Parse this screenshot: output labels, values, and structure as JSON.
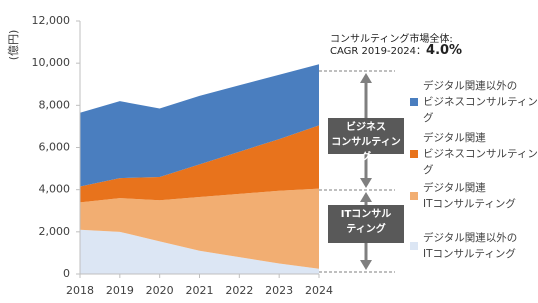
{
  "chart_data": {
    "type": "stacked_area",
    "y_label": "(億円)",
    "categories": [
      "2018",
      "2019",
      "2020",
      "2021",
      "2022",
      "2023",
      "2024"
    ],
    "series": [
      {
        "name": "デジタル関連以外の\nITコンサルティング",
        "color": "#dce6f4",
        "values": [
          2100,
          2000,
          1550,
          1100,
          800,
          500,
          250
        ]
      },
      {
        "name": "デジタル関連\nITコンサルティング",
        "color": "#f2ae72",
        "values": [
          1300,
          1600,
          1950,
          2550,
          3000,
          3450,
          3800
        ]
      },
      {
        "name": "デジタル関連\nビジネスコンサルティング",
        "color": "#e8731c",
        "values": [
          750,
          950,
          1100,
          1550,
          2000,
          2450,
          3000
        ]
      },
      {
        "name": "デジタル関連以外の\nビジネスコンサルティング",
        "color": "#4a7ebf",
        "values": [
          3500,
          3650,
          3250,
          3250,
          3150,
          3050,
          2900
        ]
      }
    ],
    "ylim": [
      0,
      12000
    ],
    "yticks": [
      0,
      {
        "value": 2000,
        "label": "2,000"
      },
      {
        "value": 4000,
        "label": "4,000"
      },
      {
        "value": 6000,
        "label": "6,000"
      },
      {
        "value": 8000,
        "label": "8,000"
      },
      {
        "value": 10000,
        "label": "10,000"
      },
      {
        "value": 12000,
        "label": "12,000"
      }
    ],
    "annotations": {
      "market": "コンサルティング市場全体:",
      "cagr_label": "CAGR 2019-2024：",
      "cagr_value": "4.0%",
      "business_box": "ビジネス\nコンサルティング",
      "it_box": "ITコンサル\nティング"
    }
  }
}
